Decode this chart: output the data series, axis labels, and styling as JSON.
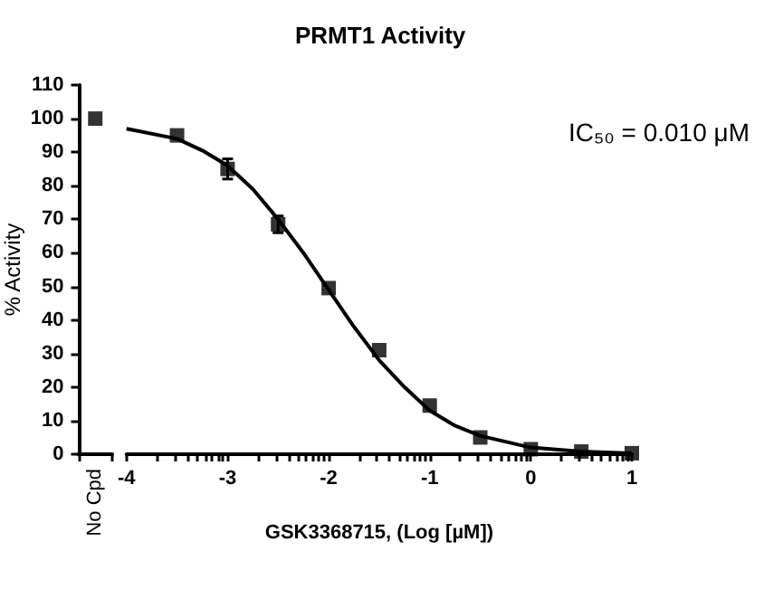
{
  "chart_data": [
    {
      "type": "scatter",
      "ylabel": "% Activity",
      "categories": [
        "No Cpd"
      ],
      "ylim": [
        0,
        110
      ],
      "yticks": [
        0,
        10,
        20,
        30,
        40,
        50,
        60,
        70,
        80,
        90,
        100,
        110
      ],
      "marker": "square",
      "grid": false,
      "series": [
        {
          "color": "#000000",
          "values": [
            100
          ]
        }
      ]
    },
    {
      "type": "scatter",
      "title": "PRMT1 Activity",
      "xlabel": "GSK3368715, (Log [µM])",
      "annotations": [
        "IC₅₀ = 0.010 μM"
      ],
      "xlim": [
        -4,
        1
      ],
      "ylim": [
        0,
        110
      ],
      "tick_labels": "x",
      "grid": false,
      "marker": "square",
      "xticks": [
        -4,
        {
          "value": -3.699,
          "label": null
        },
        {
          "value": -3.523,
          "label": null
        },
        {
          "value": -3.398,
          "label": null
        },
        {
          "value": -3.301,
          "label": null
        },
        {
          "value": -3.222,
          "label": null
        },
        {
          "value": -3.155,
          "label": null
        },
        {
          "value": -3.097,
          "label": null
        },
        {
          "value": -3.046,
          "label": null
        },
        -3,
        {
          "value": -2.699,
          "label": null
        },
        {
          "value": -2.523,
          "label": null
        },
        {
          "value": -2.398,
          "label": null
        },
        {
          "value": -2.301,
          "label": null
        },
        {
          "value": -2.222,
          "label": null
        },
        {
          "value": -2.155,
          "label": null
        },
        {
          "value": -2.097,
          "label": null
        },
        {
          "value": -2.046,
          "label": null
        },
        -2,
        {
          "value": -1.699,
          "label": null
        },
        {
          "value": -1.523,
          "label": null
        },
        {
          "value": -1.398,
          "label": null
        },
        {
          "value": -1.301,
          "label": null
        },
        {
          "value": -1.222,
          "label": null
        },
        {
          "value": -1.155,
          "label": null
        },
        {
          "value": -1.097,
          "label": null
        },
        {
          "value": -1.046,
          "label": null
        },
        -1,
        {
          "value": -0.699,
          "label": null
        },
        {
          "value": -0.523,
          "label": null
        },
        {
          "value": -0.398,
          "label": null
        },
        {
          "value": -0.301,
          "label": null
        },
        {
          "value": -0.222,
          "label": null
        },
        {
          "value": -0.155,
          "label": null
        },
        {
          "value": -0.097,
          "label": null
        },
        {
          "value": -0.046,
          "label": null
        },
        0,
        {
          "value": 0.301,
          "label": null
        },
        {
          "value": 0.477,
          "label": null
        },
        {
          "value": 0.602,
          "label": null
        },
        {
          "value": 0.699,
          "label": null
        },
        {
          "value": 0.778,
          "label": null
        },
        {
          "value": 0.845,
          "label": null
        },
        {
          "value": 0.903,
          "label": null
        },
        {
          "value": 0.954,
          "label": null
        },
        1
      ],
      "series": [
        {
          "type": "line",
          "marker": "none",
          "color": "#000000",
          "x": [
            -4,
            -3.5,
            -3.25,
            -3,
            -2.75,
            -2.5,
            -2.25,
            -2,
            -1.75,
            -1.5,
            -1.25,
            -1,
            -0.75,
            -0.5,
            0,
            0.5,
            1
          ],
          "values": [
            97,
            94,
            90.5,
            86,
            79,
            70,
            60,
            49,
            38,
            28,
            20,
            13,
            8.5,
            5.5,
            2,
            0.8,
            0.3
          ]
        },
        {
          "color": "#000000",
          "x": [
            -3.5,
            -3,
            -2.5,
            -2,
            -1.5,
            -1,
            -0.5,
            0,
            0.5,
            1
          ],
          "values": [
            95,
            85,
            68.5,
            49.5,
            31,
            14.5,
            5,
            1.5,
            0.8,
            0.3
          ],
          "errors": [
            null,
            3,
            2.5,
            null,
            null,
            null,
            null,
            null,
            null,
            null
          ]
        }
      ]
    }
  ]
}
